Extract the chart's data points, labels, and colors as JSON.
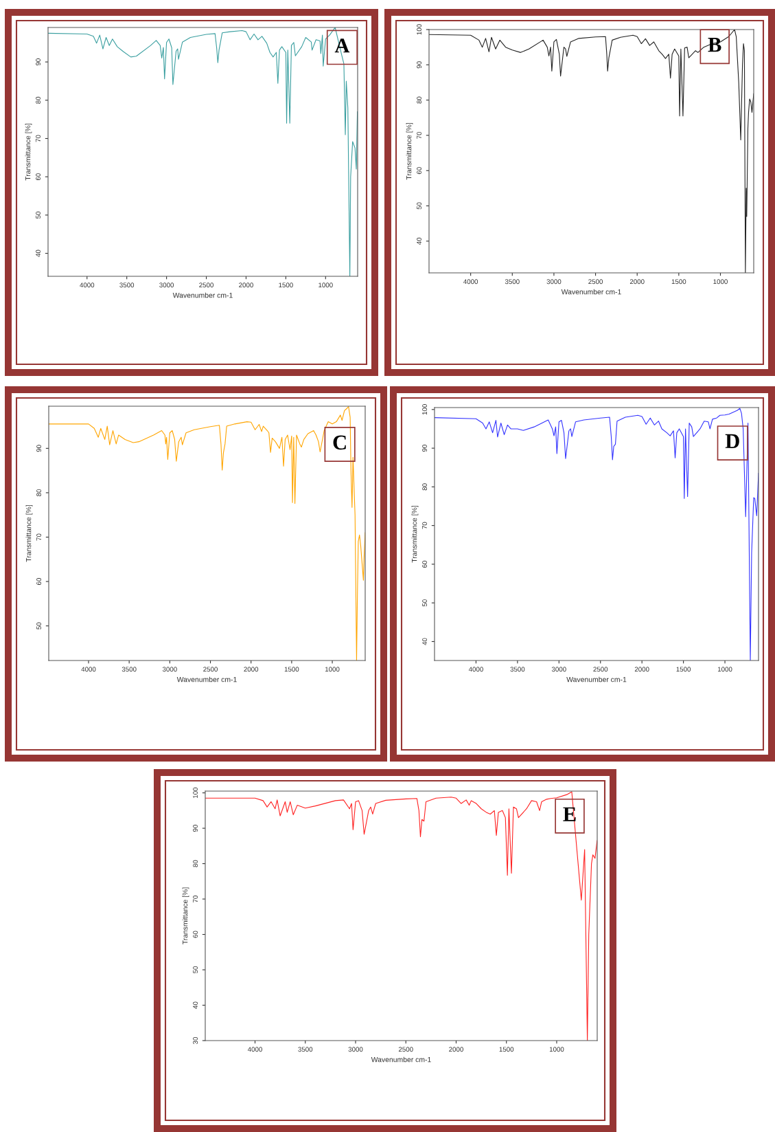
{
  "chart_data": [
    {
      "type": "line",
      "color": "#3a9fa0",
      "xlabel": "Wavenumber cm-1",
      "ylabel": "Transmittance [%]",
      "annotations": [
        "A"
      ],
      "xlim": [
        4490,
        597
      ],
      "ylim": [
        34,
        99
      ],
      "xticks": [
        4000,
        3500,
        3000,
        2500,
        2000,
        1500,
        1000
      ],
      "yticks": [
        40,
        50,
        60,
        70,
        80,
        90
      ],
      "x": [
        4490,
        4000,
        3920,
        3880,
        3840,
        3800,
        3760,
        3720,
        3680,
        3620,
        3550,
        3450,
        3380,
        3200,
        3130,
        3080,
        3060,
        3040,
        3025,
        3000,
        2970,
        2935,
        2920,
        2880,
        2860,
        2850,
        2800,
        2700,
        2500,
        2390,
        2370,
        2355,
        2340,
        2300,
        2200,
        2050,
        2000,
        1950,
        1900,
        1850,
        1800,
        1740,
        1700,
        1660,
        1620,
        1600,
        1580,
        1550,
        1500,
        1490,
        1475,
        1450,
        1430,
        1400,
        1380,
        1300,
        1250,
        1180,
        1170,
        1120,
        1070,
        1060,
        1040,
        1030,
        1000,
        950,
        880,
        800,
        770,
        752,
        740,
        720,
        695,
        685,
        660,
        630,
        614,
        600
      ],
      "values": [
        97.5,
        97.3,
        96.7,
        94.9,
        97,
        93.4,
        96.4,
        94.3,
        96,
        94,
        92.8,
        91.3,
        91.5,
        94.3,
        95.6,
        94.3,
        91,
        93.8,
        85.6,
        95.1,
        96,
        93.7,
        84.1,
        92.8,
        93.4,
        90.7,
        95.2,
        96.4,
        97.2,
        97.4,
        93.7,
        89.8,
        93.1,
        97.6,
        97.9,
        98.2,
        97.9,
        95.8,
        97.3,
        95.8,
        96.7,
        94.9,
        92.5,
        91.3,
        92.5,
        84.4,
        93.1,
        94,
        92.5,
        74,
        93.1,
        74,
        94.3,
        95.1,
        91.6,
        94,
        96.4,
        95.2,
        93.1,
        95.8,
        95.5,
        92.2,
        97,
        88.9,
        96,
        97,
        99,
        92,
        89.5,
        71,
        85,
        78,
        34,
        60,
        69.2,
        67.5,
        62,
        77
      ]
    },
    {
      "type": "line",
      "color": "#222222",
      "xlabel": "Wavenumber cm-1",
      "ylabel": "Transmittance [%]",
      "annotations": [
        "B"
      ],
      "xlim": [
        4500,
        600
      ],
      "ylim": [
        31,
        100
      ],
      "xticks": [
        4000,
        3500,
        3000,
        2500,
        2000,
        1500,
        1000
      ],
      "yticks": [
        40,
        50,
        60,
        70,
        80,
        90,
        100
      ],
      "x": [
        4500,
        4000,
        3900,
        3860,
        3820,
        3780,
        3750,
        3700,
        3650,
        3580,
        3500,
        3400,
        3300,
        3130,
        3080,
        3060,
        3040,
        3025,
        3000,
        2970,
        2935,
        2920,
        2880,
        2860,
        2845,
        2800,
        2700,
        2500,
        2380,
        2365,
        2355,
        2340,
        2300,
        2200,
        2050,
        2000,
        1950,
        1900,
        1850,
        1800,
        1740,
        1700,
        1660,
        1620,
        1600,
        1580,
        1550,
        1500,
        1490,
        1475,
        1450,
        1430,
        1400,
        1380,
        1300,
        1270,
        1200,
        1100,
        1000,
        900,
        830,
        810,
        780,
        756,
        735,
        723,
        712,
        700,
        690,
        684,
        670,
        662,
        649,
        635,
        621,
        600
      ],
      "values": [
        98.6,
        98.4,
        97,
        95,
        97.5,
        93.7,
        97.8,
        94.5,
        97,
        95,
        94.2,
        93.5,
        94.5,
        97,
        95,
        92.5,
        95,
        88.2,
        96.5,
        97.2,
        93,
        86.8,
        95,
        94.5,
        92.4,
        96.5,
        97.5,
        97.9,
        98,
        93,
        88.2,
        92,
        97,
        97.8,
        98.4,
        98,
        96,
        97.4,
        95.5,
        96.5,
        94,
        93,
        91.8,
        93,
        86.2,
        93,
        94.5,
        92.5,
        75.5,
        94.5,
        75.5,
        94.8,
        95,
        92,
        94,
        93.5,
        95,
        96,
        96.5,
        98,
        100,
        98,
        85,
        68.7,
        90,
        96,
        94,
        31,
        55,
        47,
        72,
        76.5,
        80.3,
        79.5,
        76.5,
        81.8
      ]
    },
    {
      "type": "line",
      "color": "#ffa500",
      "xlabel": "Wavenumber cm-1",
      "ylabel": "Transmittance [%]",
      "annotations": [
        "C"
      ],
      "xlim": [
        4490,
        595
      ],
      "ylim": [
        42.2,
        99.5
      ],
      "xticks": [
        4000,
        3500,
        3000,
        2500,
        2000,
        1500,
        1000
      ],
      "yticks": [
        50,
        60,
        70,
        80,
        90
      ],
      "x": [
        4490,
        4000,
        3930,
        3880,
        3850,
        3800,
        3770,
        3740,
        3700,
        3660,
        3630,
        3550,
        3450,
        3380,
        3200,
        3100,
        3060,
        3050,
        3040,
        3025,
        3000,
        2970,
        2940,
        2920,
        2890,
        2860,
        2845,
        2800,
        2700,
        2500,
        2390,
        2370,
        2355,
        2340,
        2320,
        2300,
        2200,
        2050,
        2000,
        1950,
        1900,
        1870,
        1850,
        1800,
        1780,
        1760,
        1740,
        1700,
        1650,
        1620,
        1600,
        1580,
        1550,
        1520,
        1500,
        1490,
        1475,
        1460,
        1440,
        1400,
        1380,
        1350,
        1300,
        1230,
        1200,
        1170,
        1150,
        1100,
        1050,
        1000,
        950,
        900,
        880,
        850,
        820,
        800,
        780,
        770,
        757,
        745,
        720,
        701,
        690,
        680,
        665,
        650,
        617,
        610,
        595
      ],
      "values": [
        95.5,
        95.5,
        94.5,
        92.5,
        94.5,
        92,
        95,
        90.8,
        94,
        91,
        93,
        92,
        91.3,
        91.5,
        93,
        94,
        93,
        91,
        92.5,
        87.5,
        93.5,
        94,
        92,
        87.1,
        91.5,
        92.5,
        90.8,
        93.5,
        94.2,
        94.9,
        95.2,
        91,
        85.1,
        89,
        91,
        95,
        95.5,
        96,
        95.9,
        94.2,
        95.4,
        93.8,
        95,
        94,
        93.5,
        89.1,
        92.3,
        91.5,
        90,
        92.5,
        86,
        92,
        93,
        89.7,
        92.8,
        77.8,
        92.5,
        77.6,
        93,
        91,
        90.3,
        92,
        93.3,
        94,
        93,
        91.5,
        89.2,
        94,
        96,
        95.5,
        96,
        97.5,
        96.3,
        98.5,
        99,
        99.4,
        97,
        85,
        76.7,
        88,
        75,
        42.2,
        58,
        69,
        70.5,
        68,
        60.3,
        65,
        71
      ]
    },
    {
      "type": "line",
      "color": "#3333ff",
      "xlabel": "Wavenumber cm-1",
      "ylabel": "Transmittance [%]",
      "annotations": [
        "D"
      ],
      "xlim": [
        4500,
        595
      ],
      "ylim": [
        35.1,
        100.5
      ],
      "xticks": [
        4000,
        3500,
        3000,
        2500,
        2000,
        1500,
        1000
      ],
      "yticks": [
        40,
        50,
        60,
        70,
        80,
        90,
        100
      ],
      "x": [
        4500,
        4000,
        3920,
        3880,
        3840,
        3800,
        3760,
        3740,
        3700,
        3660,
        3620,
        3580,
        3500,
        3430,
        3300,
        3130,
        3080,
        3060,
        3040,
        3025,
        3000,
        2970,
        2940,
        2920,
        2880,
        2860,
        2845,
        2800,
        2700,
        2500,
        2390,
        2370,
        2355,
        2340,
        2320,
        2300,
        2200,
        2050,
        2000,
        1950,
        1900,
        1850,
        1800,
        1760,
        1700,
        1660,
        1620,
        1600,
        1580,
        1550,
        1500,
        1490,
        1475,
        1450,
        1430,
        1400,
        1380,
        1300,
        1250,
        1200,
        1180,
        1150,
        1100,
        1060,
        1000,
        950,
        900,
        850,
        820,
        800,
        780,
        750,
        722,
        694,
        678,
        653,
        640,
        617,
        595
      ],
      "values": [
        97.9,
        97.6,
        96.5,
        95,
        96.8,
        94,
        97.2,
        92.9,
        96.5,
        93.5,
        96,
        95,
        95,
        94.6,
        95.5,
        97.3,
        95,
        93.2,
        95.5,
        88.6,
        96.8,
        97.2,
        94,
        87.3,
        94.5,
        95,
        93,
        96.8,
        97.3,
        97.8,
        98,
        93,
        87,
        90.5,
        91,
        97,
        98,
        98.5,
        98.2,
        96.2,
        97.8,
        96,
        97,
        95,
        94,
        93.2,
        94.5,
        87.5,
        94,
        95,
        93,
        77,
        95,
        77.5,
        96.5,
        95.5,
        93,
        95,
        97,
        96.8,
        95,
        97.5,
        97.8,
        98.5,
        98.6,
        98.8,
        99.3,
        99.8,
        100.3,
        99,
        95,
        72.3,
        96.5,
        35.1,
        63,
        77.2,
        77,
        72.5,
        83.5
      ]
    },
    {
      "type": "line",
      "color": "#ff2222",
      "xlabel": "Wavenumber cm-1",
      "ylabel": "Transmittance [%]",
      "annotations": [
        "E"
      ],
      "xlim": [
        4495,
        597
      ],
      "ylim": [
        30,
        100.5
      ],
      "xticks": [
        4000,
        3500,
        3000,
        2500,
        2000,
        1500,
        1000
      ],
      "yticks": [
        30,
        40,
        50,
        60,
        70,
        80,
        90,
        100
      ],
      "x": [
        4494,
        4000,
        3920,
        3880,
        3840,
        3800,
        3780,
        3750,
        3700,
        3680,
        3650,
        3620,
        3580,
        3500,
        3400,
        3200,
        3120,
        3060,
        3040,
        3025,
        3000,
        2970,
        2935,
        2915,
        2870,
        2850,
        2830,
        2800,
        2700,
        2500,
        2390,
        2370,
        2355,
        2340,
        2320,
        2300,
        2200,
        2050,
        2000,
        1950,
        1900,
        1870,
        1850,
        1800,
        1750,
        1700,
        1660,
        1620,
        1600,
        1580,
        1540,
        1510,
        1490,
        1475,
        1450,
        1430,
        1400,
        1380,
        1300,
        1250,
        1200,
        1170,
        1150,
        1100,
        1060,
        1000,
        900,
        850,
        755,
        722,
        695,
        681,
        654,
        640,
        619,
        598
      ],
      "values": [
        98.5,
        98.5,
        97.8,
        96,
        97.5,
        95.5,
        98,
        93.5,
        97.5,
        94.5,
        97.5,
        93.8,
        96.5,
        95.7,
        96.3,
        97.8,
        98,
        95.5,
        97,
        89.6,
        97.5,
        97.8,
        95,
        88.3,
        95,
        96,
        94,
        97,
        97.9,
        98.3,
        98.4,
        95,
        87.6,
        92.5,
        92,
        97.5,
        98.5,
        98.8,
        98.5,
        97,
        98,
        96.5,
        97.8,
        97,
        95.5,
        94.5,
        94,
        95,
        88,
        94.5,
        95,
        93,
        76.7,
        95.5,
        77.3,
        96,
        95.5,
        93,
        95.5,
        97.8,
        97.5,
        95,
        97.5,
        98.2,
        98.4,
        98.6,
        99.5,
        100.3,
        69.7,
        84,
        30,
        60,
        80,
        82.5,
        81.5,
        86.5
      ]
    }
  ]
}
